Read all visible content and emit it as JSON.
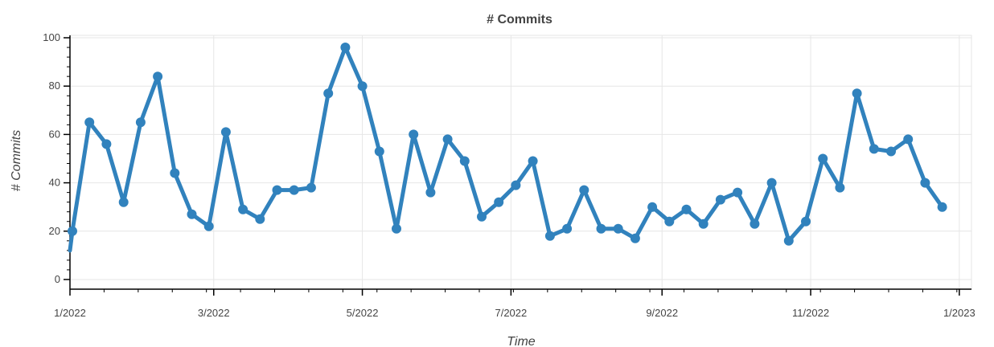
{
  "chart_data": {
    "type": "line",
    "title": "# Commits",
    "xlabel": "Time",
    "ylabel": "# Commits",
    "ylim": [
      -4,
      101
    ],
    "xlim": [
      "2022-01-01",
      "2023-01-06"
    ],
    "grid": true,
    "color": "#3182bd",
    "yticks": [
      0,
      20,
      40,
      60,
      80,
      100
    ],
    "xticks": [
      {
        "date": "2022-01-01",
        "label": "1/2022"
      },
      {
        "date": "2022-03-01",
        "label": "3/2022"
      },
      {
        "date": "2022-05-01",
        "label": "5/2022"
      },
      {
        "date": "2022-07-01",
        "label": "7/2022"
      },
      {
        "date": "2022-09-01",
        "label": "9/2022"
      },
      {
        "date": "2022-11-01",
        "label": "11/2022"
      },
      {
        "date": "2023-01-01",
        "label": "1/2023"
      }
    ],
    "series": [
      {
        "name": "",
        "x": [
          "2022-01-02",
          "2022-01-09",
          "2022-01-16",
          "2022-01-23",
          "2022-01-30",
          "2022-02-06",
          "2022-02-13",
          "2022-02-20",
          "2022-02-27",
          "2022-03-06",
          "2022-03-13",
          "2022-03-20",
          "2022-03-27",
          "2022-04-03",
          "2022-04-10",
          "2022-04-17",
          "2022-04-24",
          "2022-05-01",
          "2022-05-08",
          "2022-05-15",
          "2022-05-22",
          "2022-05-29",
          "2022-06-05",
          "2022-06-12",
          "2022-06-19",
          "2022-06-26",
          "2022-07-03",
          "2022-07-10",
          "2022-07-17",
          "2022-07-24",
          "2022-07-31",
          "2022-08-07",
          "2022-08-14",
          "2022-08-21",
          "2022-08-28",
          "2022-09-04",
          "2022-09-11",
          "2022-09-18",
          "2022-09-25",
          "2022-10-02",
          "2022-10-09",
          "2022-10-16",
          "2022-10-23",
          "2022-10-30",
          "2022-11-06",
          "2022-11-13",
          "2022-11-20",
          "2022-11-27",
          "2022-12-04",
          "2022-12-11",
          "2022-12-18",
          "2022-12-25"
        ],
        "values": [
          20,
          65,
          56,
          32,
          65,
          84,
          44,
          27,
          22,
          61,
          29,
          25,
          37,
          37,
          38,
          77,
          96,
          80,
          53,
          21,
          60,
          36,
          58,
          49,
          26,
          32,
          39,
          49,
          18,
          21,
          37,
          21,
          21,
          17,
          30,
          24,
          29,
          23,
          33,
          36,
          23,
          40,
          16,
          24,
          50,
          38,
          77,
          54,
          53,
          58,
          40,
          30
        ]
      }
    ]
  }
}
